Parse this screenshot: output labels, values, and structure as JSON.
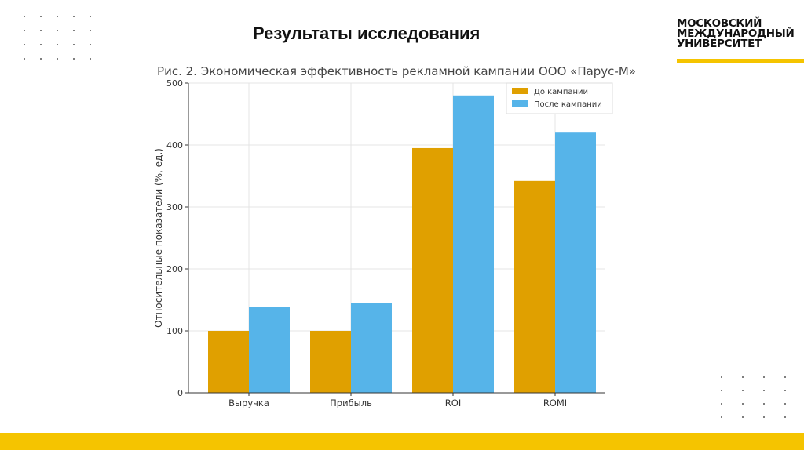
{
  "slide": {
    "title": "Результаты исследования",
    "logo_lines": [
      "МОСКОВСКИЙ",
      "МЕЖДУНАРОДНЫЙ",
      "УНИВЕРСИТЕТ"
    ],
    "accent": "#f5c400"
  },
  "chart_data": {
    "type": "bar",
    "title": "Рис. 2. Экономическая эффективность рекламной кампании ООО «Парус-М»",
    "xlabel": "",
    "ylabel": "Относительные показатели (%, ед.)",
    "categories": [
      "Выручка",
      "Прибыль",
      "ROI",
      "ROMI"
    ],
    "series": [
      {
        "name": "До кампании",
        "values": [
          100,
          100,
          395,
          342
        ],
        "color": "#e0a000"
      },
      {
        "name": "После кампании",
        "values": [
          138,
          145,
          480,
          420
        ],
        "color": "#56b4e9"
      }
    ],
    "ylim": [
      0,
      500
    ],
    "yticks": [
      0,
      100,
      200,
      300,
      400,
      500
    ],
    "grid": true,
    "legend": "top-right"
  }
}
